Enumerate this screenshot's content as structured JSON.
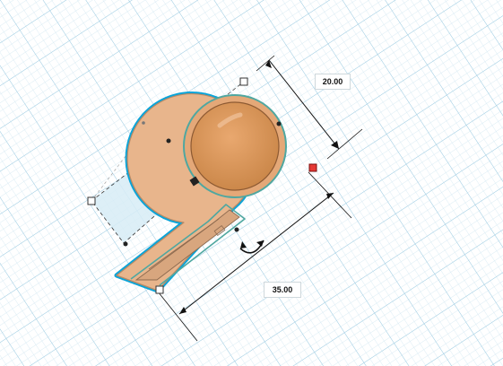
{
  "workplane": {
    "grid_minor_color": "#cfe6f1",
    "grid_major_color": "#9fcde3"
  },
  "shape": {
    "fill_color": "#e8b58c",
    "inner_fill_color": "#c98a52",
    "selection_outline_color": "#0aa4d8",
    "hole_helper_color": "#d7ecf6"
  },
  "dimensions": {
    "top_value": "20.00",
    "bottom_value": "35.00"
  },
  "icons": {
    "rotate_handle": "rotate-arrow-icon",
    "height_handle": "red-square-handle-icon"
  }
}
